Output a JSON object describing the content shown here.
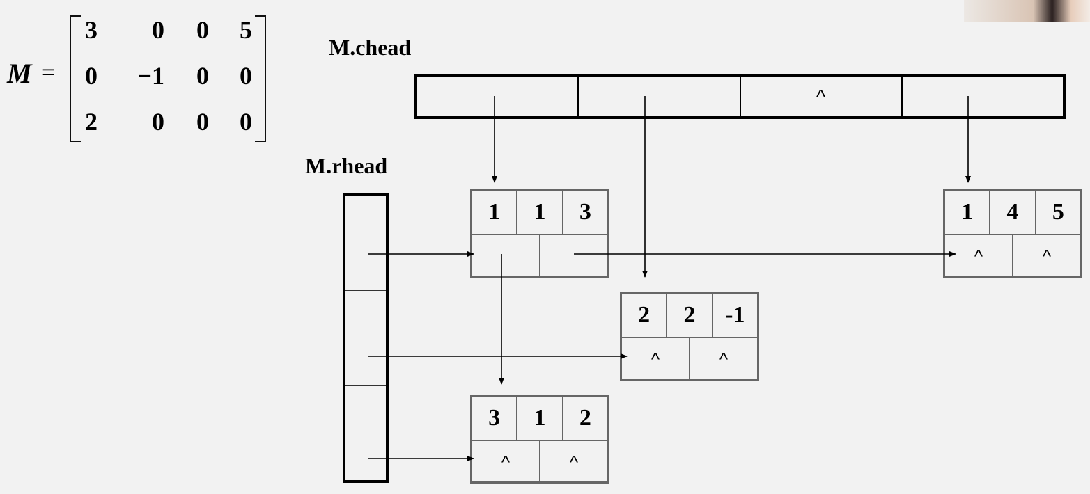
{
  "matrix": {
    "name": "M",
    "equals": "=",
    "rows": [
      [
        "3",
        "0",
        "0",
        "5"
      ],
      [
        "0",
        "−1",
        "0",
        "0"
      ],
      [
        "2",
        "0",
        "0",
        "0"
      ]
    ]
  },
  "chead": {
    "label": "M.chead",
    "cells": [
      "",
      "",
      "^",
      ""
    ]
  },
  "rhead": {
    "label": "M.rhead"
  },
  "nodes": {
    "n113": {
      "i": "1",
      "j": "1",
      "e": "3",
      "right": "",
      "down": ""
    },
    "n145": {
      "i": "1",
      "j": "4",
      "e": "5",
      "right": "^",
      "down": "^"
    },
    "n22m1": {
      "i": "2",
      "j": "2",
      "e": "-1",
      "right": "^",
      "down": "^"
    },
    "n312": {
      "i": "3",
      "j": "1",
      "e": "2",
      "right": "^",
      "down": "^"
    }
  }
}
